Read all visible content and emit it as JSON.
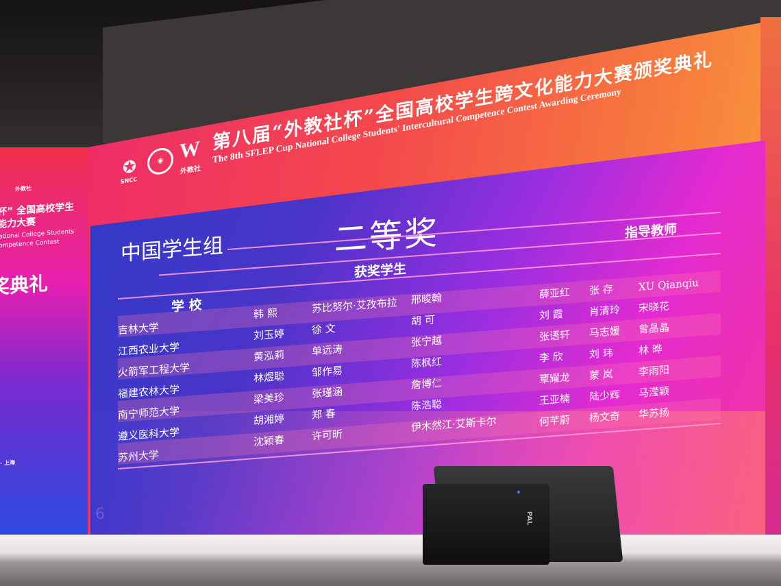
{
  "banner": {
    "title_cn": "第八届“外教社杯”全国高校学生跨文化能力大赛颁奖典礼",
    "title_en": "The 8th SFLEP Cup National College Students' Intercultural Competence Contest Awarding Ceremony",
    "logos": {
      "sncc": "SNCC",
      "publisher": "外教社",
      "w_mark": "W"
    }
  },
  "slide": {
    "award": "二等奖",
    "group": "中国学生组",
    "page_number": "6",
    "headers": {
      "school": "学 校",
      "students": "获奖学生",
      "teachers": "指导教师"
    },
    "rows": [
      {
        "school": "吉林大学",
        "students": [
          "韩 熙",
          "苏比努尔·艾孜布拉",
          "邢晙翰"
        ],
        "teachers": [
          "薛亚红",
          "张 存",
          "XU Qianqiu"
        ]
      },
      {
        "school": "江西农业大学",
        "students": [
          "刘玉婷",
          "徐 文",
          "胡 可"
        ],
        "teachers": [
          "刘 霞",
          "肖清玲",
          "宋晓花"
        ]
      },
      {
        "school": "火箭军工程大学",
        "students": [
          "黄泓莉",
          "单远涛",
          "张宁越"
        ],
        "teachers": [
          "张语轩",
          "马志媛",
          "曾晶晶"
        ]
      },
      {
        "school": "福建农林大学",
        "students": [
          "林煜聪",
          "邹作易",
          "陈枫红"
        ],
        "teachers": [
          "李 欣",
          "刘 玮",
          "林 晔"
        ]
      },
      {
        "school": "南宁师范大学",
        "students": [
          "梁美珍",
          "张瑾涵",
          "詹博仁"
        ],
        "teachers": [
          "覃耀龙",
          "蒙 岚",
          "李雨阳"
        ]
      },
      {
        "school": "遵义医科大学",
        "students": [
          "胡湘婷",
          "郑 春",
          "陈浩聪"
        ],
        "teachers": [
          "王亚楠",
          "陆少辉",
          "马滢颖"
        ]
      },
      {
        "school": "苏州大学",
        "students": [
          "沈颖春",
          "许可昕",
          "伊木然江·艾斯卡尔"
        ],
        "teachers": [
          "何芊蔚",
          "杨文奇",
          "华苏扬"
        ]
      }
    ]
  },
  "side_screen": {
    "logo_text": "外教社",
    "line1": "杯” 全国高校学生",
    "line2": "能力大赛",
    "line3": "ational College Students'",
    "line4": "ompetence Contest",
    "line5": "奖典礼",
    "footer": "· 上海"
  },
  "speaker": {
    "brand": "PAL"
  },
  "colors": {
    "header_orange": "#f4484c",
    "panel_blue": "#2f3bc8",
    "panel_magenta": "#e52ad0"
  }
}
